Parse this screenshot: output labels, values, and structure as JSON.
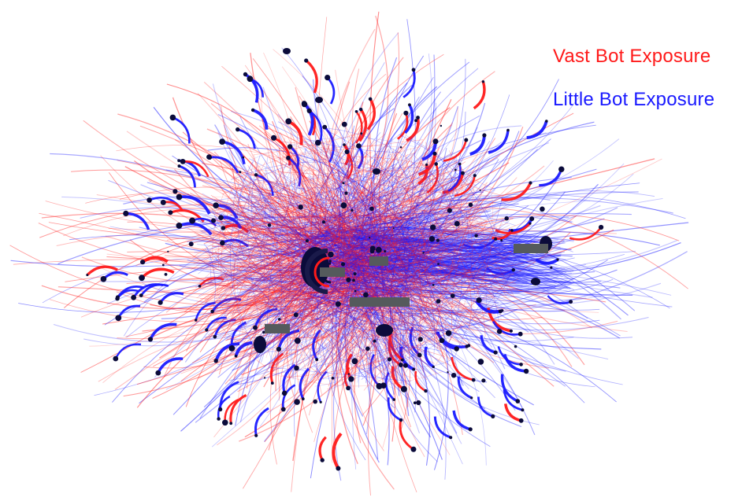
{
  "legend": {
    "items": [
      {
        "label": "Vast Bot Exposure",
        "color": "#ff1a1a"
      },
      {
        "label": "Little Bot Exposure",
        "color": "#1a1aff"
      }
    ]
  },
  "colors": {
    "vast": "#ff1a1a",
    "little": "#1a1aff",
    "node": "#0b0b3a",
    "redaction": "#555a5c",
    "background": "#ffffff"
  }
}
